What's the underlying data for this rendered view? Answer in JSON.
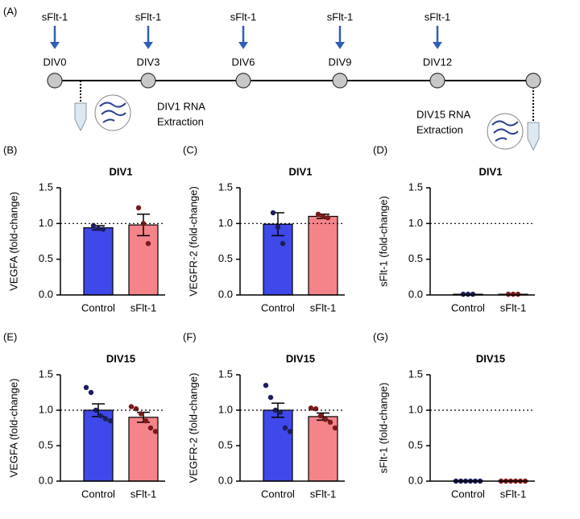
{
  "timeline": {
    "panel": "(A)",
    "treatments": [
      "sFlt-1",
      "sFlt-1",
      "sFlt-1",
      "sFlt-1",
      "sFlt-1"
    ],
    "days": [
      "DIV0",
      "DIV3",
      "DIV6",
      "DIV9",
      "DIV12"
    ],
    "extractions": [
      [
        "DIV1 RNA",
        "Extraction"
      ],
      [
        "DIV15 RNA",
        "Extraction"
      ]
    ]
  },
  "chart_data": [
    {
      "type": "bar",
      "panel": "(B)",
      "title": "DIV1",
      "y_label": "VEGFA (fold-change)",
      "categories": [
        "Control",
        "sFlt-1"
      ],
      "values": [
        0.94,
        0.98
      ],
      "errors": [
        0.03,
        0.15
      ],
      "colors": [
        "#3f48e8",
        "#f4848a"
      ],
      "point_colors": [
        "#1b1e5a",
        "#7a1a1a"
      ],
      "points": [
        [
          0.97,
          0.93,
          0.92
        ],
        [
          1.22,
          1.0,
          0.72
        ]
      ],
      "reference_line": 1,
      "ylim": [
        0,
        1.5
      ],
      "yticks": [
        {
          "value": 0,
          "label": "0.0"
        },
        {
          "value": 0.5,
          "label": "0.5"
        },
        {
          "value": 1,
          "label": "1.0"
        },
        {
          "value": 1.5,
          "label": "1.5"
        }
      ]
    },
    {
      "type": "bar",
      "panel": "(C)",
      "title": "DIV1",
      "y_label": "VEGFR-2 (fold-change)",
      "categories": [
        "Control",
        "sFlt-1"
      ],
      "values": [
        0.99,
        1.1
      ],
      "errors": [
        0.16,
        0.03
      ],
      "colors": [
        "#3f48e8",
        "#f4848a"
      ],
      "point_colors": [
        "#1b1e5a",
        "#7a1a1a"
      ],
      "points": [
        [
          1.15,
          0.95,
          0.72
        ],
        [
          1.13,
          1.1,
          1.08
        ]
      ],
      "reference_line": 1,
      "ylim": [
        0,
        1.5
      ],
      "yticks": [
        {
          "value": 0,
          "label": "0.0"
        },
        {
          "value": 0.5,
          "label": "0.5"
        },
        {
          "value": 1,
          "label": "1.0"
        },
        {
          "value": 1.5,
          "label": "1.5"
        }
      ]
    },
    {
      "type": "bar",
      "panel": "(D)",
      "title": "DIV1",
      "y_label": "sFlt-1 (fold-change)",
      "categories": [
        "Control",
        "sFlt-1"
      ],
      "values": [
        0.01,
        0.01
      ],
      "errors": [
        0,
        0
      ],
      "colors": [
        "#3f48e8",
        "#f4848a"
      ],
      "point_colors": [
        "#1b1e5a",
        "#7a1a1a"
      ],
      "points": [
        [
          0.01,
          0.01,
          0.01
        ],
        [
          0.01,
          0.01,
          0.01
        ]
      ],
      "reference_line": 1,
      "ylim": [
        0,
        1.5
      ],
      "yticks": [
        {
          "value": 0,
          "label": "0.0"
        },
        {
          "value": 0.5,
          "label": "0.5"
        },
        {
          "value": 1,
          "label": "1.0"
        },
        {
          "value": 1.5,
          "label": "1.5"
        }
      ]
    },
    {
      "type": "bar",
      "panel": "(E)",
      "title": "DIV15",
      "y_label": "VEGFA (fold-change)",
      "categories": [
        "Control",
        "sFlt-1"
      ],
      "values": [
        1.0,
        0.9
      ],
      "errors": [
        0.09,
        0.07
      ],
      "colors": [
        "#3f48e8",
        "#f4848a"
      ],
      "point_colors": [
        "#1b1e5a",
        "#7a1a1a"
      ],
      "points": [
        [
          1.32,
          1.25,
          1.0,
          0.92,
          0.88,
          0.85
        ],
        [
          1.05,
          1.02,
          0.95,
          0.85,
          0.75,
          0.7
        ]
      ],
      "reference_line": 1,
      "ylim": [
        0,
        1.5
      ],
      "yticks": [
        {
          "value": 0,
          "label": "0.0"
        },
        {
          "value": 0.5,
          "label": "0.5"
        },
        {
          "value": 1,
          "label": "1.0"
        },
        {
          "value": 1.5,
          "label": "1.5"
        }
      ]
    },
    {
      "type": "bar",
      "panel": "(F)",
      "title": "DIV15",
      "y_label": "VEGFR-2 (fold-change)",
      "categories": [
        "Control",
        "sFlt-1"
      ],
      "values": [
        1.0,
        0.91
      ],
      "errors": [
        0.1,
        0.05
      ],
      "colors": [
        "#3f48e8",
        "#f4848a"
      ],
      "point_colors": [
        "#1b1e5a",
        "#7a1a1a"
      ],
      "points": [
        [
          1.35,
          1.18,
          1.0,
          0.97,
          0.75,
          0.7
        ],
        [
          1.03,
          1.02,
          0.92,
          0.87,
          0.83,
          0.75
        ]
      ],
      "reference_line": 1,
      "ylim": [
        0,
        1.5
      ],
      "yticks": [
        {
          "value": 0,
          "label": "0.0"
        },
        {
          "value": 0.5,
          "label": "0.5"
        },
        {
          "value": 1,
          "label": "1.0"
        },
        {
          "value": 1.5,
          "label": "1.5"
        }
      ]
    },
    {
      "type": "bar",
      "panel": "(G)",
      "title": "DIV15",
      "y_label": "sFlt-1 (fold-change)",
      "categories": [
        "Control",
        "sFlt-1"
      ],
      "values": [
        0.005,
        0.005
      ],
      "errors": [
        0,
        0
      ],
      "colors": [
        "#3f48e8",
        "#f4848a"
      ],
      "point_colors": [
        "#1b1e5a",
        "#7a1a1a"
      ],
      "points": [
        [
          0,
          0,
          0,
          0,
          0,
          0
        ],
        [
          0,
          0,
          0,
          0,
          0,
          0
        ]
      ],
      "reference_line": 1,
      "ylim": [
        0,
        1.5
      ],
      "yticks": [
        {
          "value": 0,
          "label": "0.0"
        },
        {
          "value": 0.5,
          "label": "0.5"
        },
        {
          "value": 1,
          "label": "1.0"
        },
        {
          "value": 1.5,
          "label": "1.5"
        }
      ]
    }
  ]
}
